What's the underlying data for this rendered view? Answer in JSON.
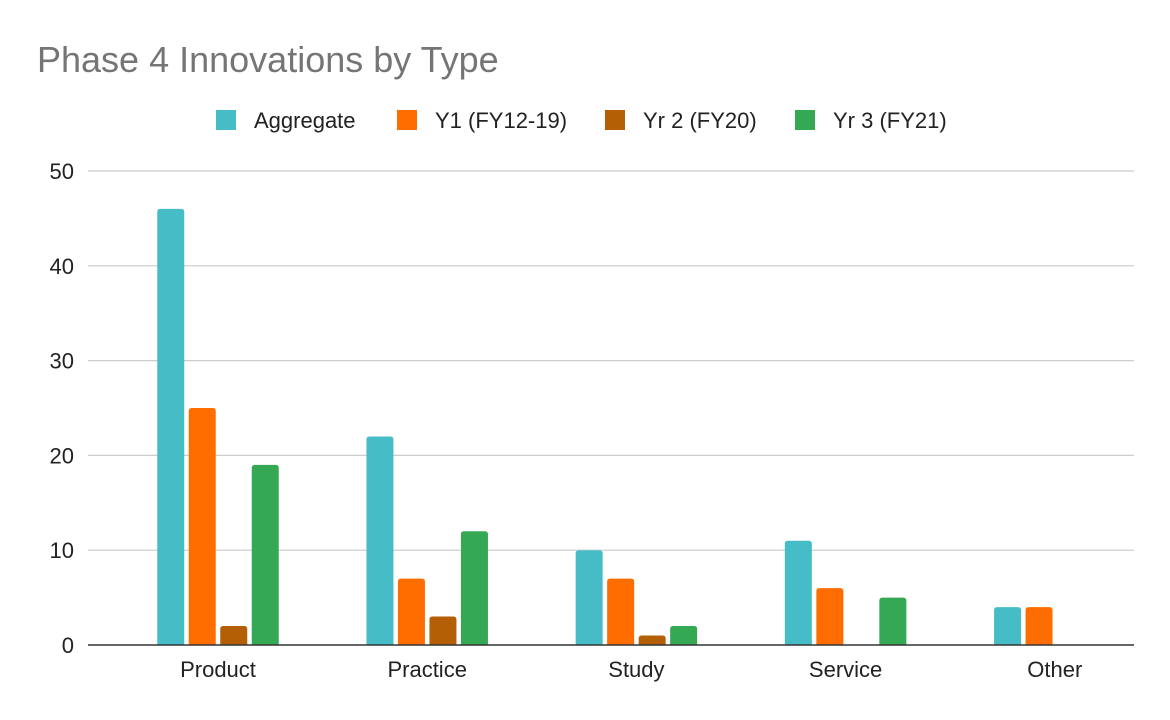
{
  "chart_data": {
    "type": "bar",
    "title": "Phase 4 Innovations by Type",
    "categories": [
      "Product",
      "Practice",
      "Study",
      "Service",
      "Other"
    ],
    "series": [
      {
        "name": "Aggregate",
        "color": "#46bdc6",
        "values": [
          46,
          22,
          10,
          11,
          4
        ]
      },
      {
        "name": "Y1 (FY12-19)",
        "color": "#ff6d01",
        "values": [
          25,
          7,
          7,
          6,
          4
        ]
      },
      {
        "name": "Yr 2 (FY20)",
        "color": "#b45f06",
        "values": [
          2,
          3,
          1,
          0,
          0
        ]
      },
      {
        "name": "Yr 3 (FY21)",
        "color": "#34a853",
        "values": [
          19,
          12,
          2,
          5,
          0
        ]
      }
    ],
    "ylim": [
      0,
      50
    ],
    "yticks": [
      0,
      10,
      20,
      30,
      40,
      50
    ],
    "xlabel": "",
    "ylabel": "",
    "grid": true,
    "legend_position": "top"
  }
}
